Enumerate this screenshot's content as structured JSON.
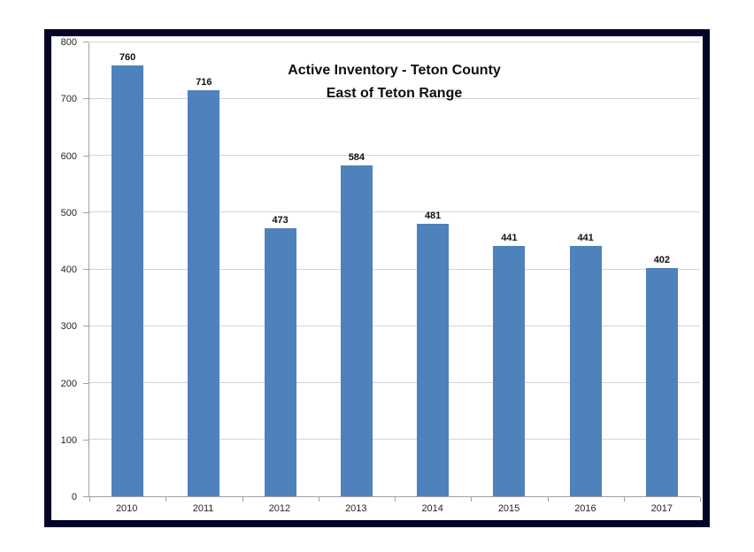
{
  "page": {
    "background": "#ffffff",
    "frame_border_color": "#04042a"
  },
  "chart_data": {
    "type": "bar",
    "title_line1": "Active Inventory - Teton County",
    "title_line2": "East of Teton Range",
    "categories": [
      "2010",
      "2011",
      "2012",
      "2013",
      "2014",
      "2015",
      "2016",
      "2017"
    ],
    "values": [
      760,
      716,
      473,
      584,
      481,
      441,
      441,
      402
    ],
    "xlabel": "",
    "ylabel": "",
    "ylim": [
      0,
      800
    ],
    "yticks": [
      0,
      100,
      200,
      300,
      400,
      500,
      600,
      700,
      800
    ],
    "grid": "horizontal",
    "legend": "none",
    "bar_color": "#4f81bd",
    "gridline_color": "#d4d4d4",
    "axis_color": "#a0a0a0"
  }
}
